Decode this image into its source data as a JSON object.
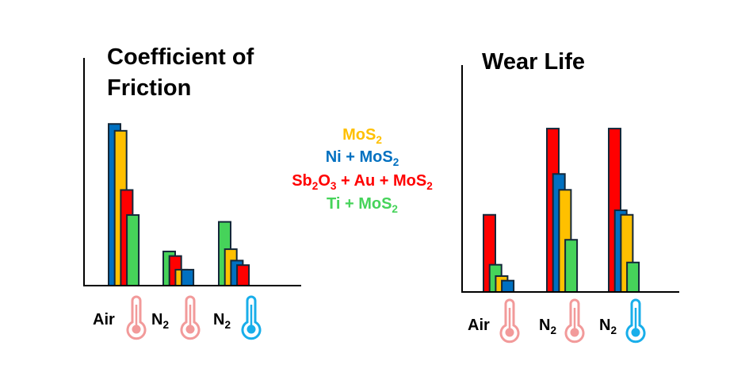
{
  "colors": {
    "MoS2": "#FFC000",
    "Ni + MoS2": "#0070C0",
    "Sb2O3 + Au + MoS2": "#FF0000",
    "Ti + MoS2": "#46D35A",
    "hot": "#F29A9A",
    "cold": "#18AEEA"
  },
  "legend": [
    {
      "key": "MoS2",
      "parts": [
        [
          "MoS",
          ""
        ],
        [
          "2",
          "sub"
        ]
      ]
    },
    {
      "key": "Ni + MoS2",
      "parts": [
        [
          "Ni + MoS",
          ""
        ],
        [
          "2",
          "sub"
        ]
      ]
    },
    {
      "key": "Sb2O3 + Au + MoS2",
      "parts": [
        [
          "Sb",
          ""
        ],
        [
          "2",
          "sub"
        ],
        [
          "O",
          ""
        ],
        [
          "3",
          "sub"
        ],
        [
          " + Au + MoS",
          ""
        ],
        [
          "2",
          "sub"
        ]
      ]
    },
    {
      "key": "Ti + MoS2",
      "parts": [
        [
          "Ti + MoS",
          ""
        ],
        [
          "2",
          "sub"
        ]
      ]
    }
  ],
  "chart_data": [
    {
      "type": "bar",
      "title": "Coefficient of Friction",
      "title_lines": [
        "Coefficient of",
        "Friction"
      ],
      "ylim": [
        0,
        100
      ],
      "categories": [
        {
          "label": [
            [
              "Air",
              ""
            ]
          ],
          "thermo": "hot"
        },
        {
          "label": [
            [
              "N",
              ""
            ],
            [
              "2",
              "sub"
            ]
          ],
          "thermo": "hot"
        },
        {
          "label": [
            [
              "N",
              ""
            ],
            [
              "2",
              "sub"
            ]
          ],
          "thermo": "cold"
        }
      ],
      "groups": [
        [
          {
            "series": "Ni + MoS2",
            "value": 71
          },
          {
            "series": "MoS2",
            "value": 68
          },
          {
            "series": "Sb2O3 + Au + MoS2",
            "value": 42
          },
          {
            "series": "Ti + MoS2",
            "value": 31
          }
        ],
        [
          {
            "series": "Ti + MoS2",
            "value": 15
          },
          {
            "series": "Sb2O3 + Au + MoS2",
            "value": 13
          },
          {
            "series": "MoS2",
            "value": 7
          },
          {
            "series": "Ni + MoS2",
            "value": 7
          }
        ],
        [
          {
            "series": "Ti + MoS2",
            "value": 28
          },
          {
            "series": "MoS2",
            "value": 16
          },
          {
            "series": "Ni + MoS2",
            "value": 11
          },
          {
            "series": "Sb2O3 + Au + MoS2",
            "value": 9
          }
        ]
      ]
    },
    {
      "type": "bar",
      "title": "Wear Life",
      "title_lines": [
        "Wear Life"
      ],
      "ylim": [
        0,
        100
      ],
      "categories": [
        {
          "label": [
            [
              "Air",
              ""
            ]
          ],
          "thermo": "hot"
        },
        {
          "label": [
            [
              "N",
              ""
            ],
            [
              "2",
              "sub"
            ]
          ],
          "thermo": "hot"
        },
        {
          "label": [
            [
              "N",
              ""
            ],
            [
              "2",
              "sub"
            ]
          ],
          "thermo": "cold"
        }
      ],
      "groups": [
        [
          {
            "series": "Sb2O3 + Au + MoS2",
            "value": 34
          },
          {
            "series": "Ti + MoS2",
            "value": 12
          },
          {
            "series": "MoS2",
            "value": 7
          },
          {
            "series": "Ni + MoS2",
            "value": 5
          }
        ],
        [
          {
            "series": "Sb2O3 + Au + MoS2",
            "value": 72
          },
          {
            "series": "Ni + MoS2",
            "value": 52
          },
          {
            "series": "MoS2",
            "value": 45
          },
          {
            "series": "Ti + MoS2",
            "value": 23
          }
        ],
        [
          {
            "series": "Sb2O3 + Au + MoS2",
            "value": 72
          },
          {
            "series": "Ni + MoS2",
            "value": 36
          },
          {
            "series": "MoS2",
            "value": 34
          },
          {
            "series": "Ti + MoS2",
            "value": 13
          }
        ]
      ]
    }
  ]
}
